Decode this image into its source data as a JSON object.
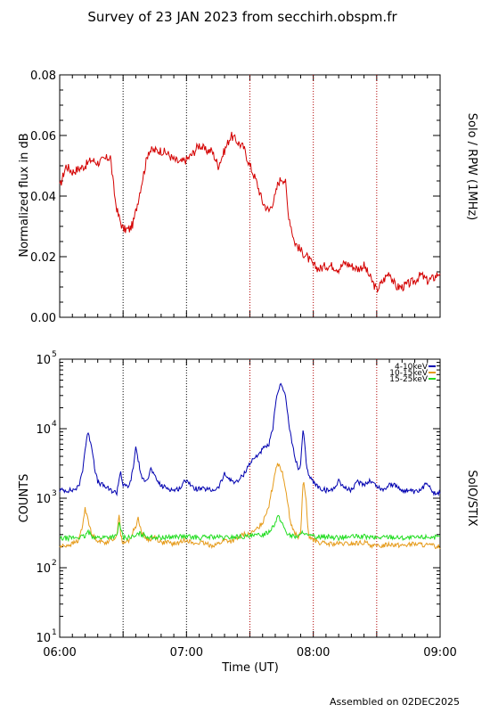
{
  "chart_data": [
    {
      "type": "line",
      "panel": "top",
      "title": "Survey of 23 JAN 2023 from secchirh.obspm.fr",
      "ylabel": "Normalized flux in dB",
      "right_label": "Solo / RPW (1MHz)",
      "ylim": [
        0,
        0.08
      ],
      "yticks": [
        "0.00",
        "0.02",
        "0.04",
        "0.06",
        "0.08"
      ],
      "ytick_values": [
        0,
        0.02,
        0.04,
        0.06,
        0.08
      ],
      "xlim": [
        6.0,
        9.0
      ],
      "vlines": [
        6.5,
        7.0,
        7.5,
        8.0,
        8.5
      ],
      "series": [
        {
          "color": "#d40000",
          "x": [
            6.0,
            6.05,
            6.1,
            6.15,
            6.2,
            6.25,
            6.3,
            6.35,
            6.4,
            6.42,
            6.44,
            6.46,
            6.5,
            6.55,
            6.58,
            6.6,
            6.65,
            6.7,
            6.75,
            6.8,
            6.85,
            6.9,
            6.95,
            7.0,
            7.05,
            7.1,
            7.15,
            7.2,
            7.25,
            7.3,
            7.35,
            7.4,
            7.45,
            7.5,
            7.55,
            7.6,
            7.65,
            7.7,
            7.72,
            7.75,
            7.78,
            7.8,
            7.85,
            7.9,
            7.95,
            8.0,
            8.05,
            8.1,
            8.15,
            8.2,
            8.25,
            8.3,
            8.35,
            8.4,
            8.45,
            8.5,
            8.55,
            8.6,
            8.65,
            8.7,
            8.75,
            8.8,
            8.85,
            8.9,
            8.95,
            9.0
          ],
          "values": [
            0.043,
            0.05,
            0.048,
            0.049,
            0.05,
            0.052,
            0.051,
            0.052,
            0.053,
            0.045,
            0.038,
            0.034,
            0.029,
            0.029,
            0.031,
            0.035,
            0.045,
            0.055,
            0.055,
            0.055,
            0.054,
            0.052,
            0.051,
            0.052,
            0.054,
            0.057,
            0.055,
            0.055,
            0.05,
            0.055,
            0.06,
            0.058,
            0.056,
            0.05,
            0.045,
            0.038,
            0.035,
            0.04,
            0.044,
            0.046,
            0.045,
            0.035,
            0.025,
            0.022,
            0.02,
            0.017,
            0.016,
            0.017,
            0.017,
            0.016,
            0.018,
            0.017,
            0.016,
            0.017,
            0.013,
            0.009,
            0.012,
            0.015,
            0.01,
            0.01,
            0.011,
            0.012,
            0.014,
            0.012,
            0.013,
            0.015
          ]
        }
      ]
    },
    {
      "type": "line",
      "panel": "bottom",
      "ylabel": "COUNTS",
      "right_label": "SolO/STIX",
      "log_y": true,
      "ylim": [
        10,
        100000
      ],
      "yticks": [
        "10",
        "10",
        "10",
        "10",
        "10"
      ],
      "ytick_exps": [
        "1",
        "2",
        "3",
        "4",
        "5"
      ],
      "ytick_values": [
        10,
        100,
        1000,
        10000,
        100000
      ],
      "xlim": [
        6.0,
        9.0
      ],
      "xticks": [
        "06:00",
        "07:00",
        "08:00",
        "09:00"
      ],
      "xtick_values": [
        6.0,
        7.0,
        8.0,
        9.0
      ],
      "xlabel": "Time (UT)",
      "vlines": [
        6.5,
        7.0,
        7.5,
        8.0,
        8.5
      ],
      "legend": "top-right",
      "series": [
        {
          "name": "4-10keV",
          "color": "#0000b0",
          "x": [
            6.0,
            6.1,
            6.15,
            6.18,
            6.2,
            6.22,
            6.25,
            6.28,
            6.3,
            6.35,
            6.4,
            6.45,
            6.48,
            6.5,
            6.55,
            6.58,
            6.6,
            6.62,
            6.65,
            6.7,
            6.72,
            6.75,
            6.8,
            6.85,
            6.9,
            6.95,
            7.0,
            7.05,
            7.1,
            7.15,
            7.2,
            7.25,
            7.3,
            7.35,
            7.4,
            7.45,
            7.5,
            7.55,
            7.6,
            7.65,
            7.68,
            7.7,
            7.72,
            7.75,
            7.78,
            7.8,
            7.82,
            7.85,
            7.88,
            7.9,
            7.92,
            7.95,
            8.0,
            8.05,
            8.1,
            8.15,
            8.2,
            8.25,
            8.3,
            8.35,
            8.4,
            8.45,
            8.5,
            8.55,
            8.6,
            8.65,
            8.7,
            8.75,
            8.8,
            8.85,
            8.9,
            8.95,
            9.0
          ],
          "values": [
            1300,
            1300,
            1450,
            2500,
            5000,
            8800,
            6000,
            2500,
            1700,
            1500,
            1300,
            1200,
            2500,
            1500,
            1500,
            2700,
            5500,
            3500,
            1800,
            2000,
            2700,
            2000,
            1500,
            1400,
            1300,
            1400,
            1900,
            1400,
            1350,
            1350,
            1300,
            1400,
            2200,
            1800,
            1700,
            2200,
            3200,
            4000,
            5000,
            5800,
            10000,
            20000,
            35000,
            45000,
            30000,
            15000,
            8000,
            4500,
            2500,
            3000,
            10000,
            2500,
            1700,
            1400,
            1300,
            1300,
            1800,
            1400,
            1300,
            1700,
            1600,
            1800,
            1500,
            1300,
            1600,
            1500,
            1300,
            1300,
            1200,
            1300,
            1700,
            1200,
            1200
          ]
        },
        {
          "name": "10-15keV",
          "color": "#e69b1a",
          "x": [
            6.0,
            6.1,
            6.15,
            6.18,
            6.2,
            6.22,
            6.25,
            6.3,
            6.35,
            6.4,
            6.45,
            6.47,
            6.48,
            6.5,
            6.55,
            6.6,
            6.62,
            6.65,
            6.7,
            6.75,
            6.8,
            6.85,
            6.9,
            6.95,
            7.0,
            7.05,
            7.1,
            7.15,
            7.2,
            7.25,
            7.3,
            7.35,
            7.4,
            7.45,
            7.5,
            7.55,
            7.6,
            7.65,
            7.68,
            7.7,
            7.72,
            7.75,
            7.78,
            7.8,
            7.82,
            7.85,
            7.88,
            7.9,
            7.92,
            7.94,
            7.96,
            8.0,
            8.05,
            8.1,
            8.2,
            8.3,
            8.4,
            8.5,
            8.6,
            8.7,
            8.8,
            8.9,
            9.0
          ],
          "values": [
            200,
            220,
            250,
            400,
            700,
            550,
            300,
            250,
            230,
            250,
            280,
            650,
            300,
            220,
            250,
            400,
            520,
            300,
            250,
            280,
            230,
            230,
            220,
            230,
            260,
            220,
            230,
            220,
            210,
            220,
            250,
            240,
            260,
            300,
            300,
            350,
            450,
            800,
            1500,
            2500,
            3300,
            2500,
            1500,
            800,
            450,
            320,
            280,
            300,
            1800,
            1100,
            300,
            250,
            230,
            220,
            220,
            220,
            230,
            200,
            220,
            210,
            220,
            210,
            200
          ]
        },
        {
          "name": "15-25keV",
          "color": "#22dd22",
          "x": [
            6.0,
            6.1,
            6.2,
            6.22,
            6.25,
            6.3,
            6.4,
            6.45,
            6.47,
            6.5,
            6.6,
            6.62,
            6.7,
            6.8,
            6.9,
            7.0,
            7.1,
            7.2,
            7.3,
            7.4,
            7.5,
            7.6,
            7.65,
            7.7,
            7.72,
            7.75,
            7.78,
            7.8,
            7.85,
            7.9,
            7.92,
            7.95,
            8.0,
            8.1,
            8.2,
            8.3,
            8.4,
            8.5,
            8.6,
            8.7,
            8.8,
            8.9,
            9.0
          ],
          "values": [
            260,
            270,
            280,
            330,
            290,
            270,
            280,
            280,
            450,
            270,
            280,
            310,
            280,
            270,
            280,
            280,
            270,
            280,
            270,
            280,
            280,
            300,
            330,
            450,
            550,
            450,
            350,
            300,
            280,
            290,
            340,
            290,
            280,
            280,
            270,
            280,
            280,
            270,
            280,
            270,
            270,
            280,
            270
          ]
        }
      ]
    }
  ],
  "footer": {
    "assembled": "Assembled on 02DEC2025"
  }
}
